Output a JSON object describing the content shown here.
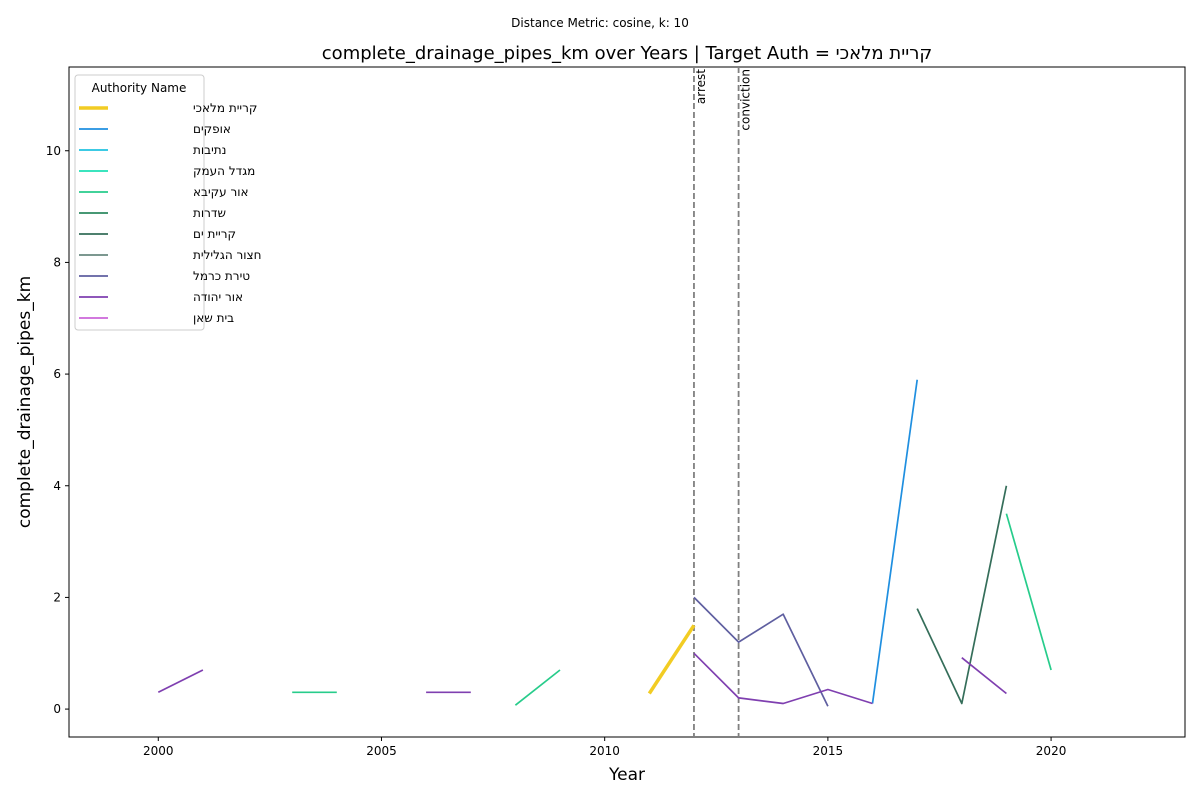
{
  "chart_data": {
    "type": "line",
    "suptitle": "Distance Metric: cosine, k: 10",
    "title": "complete_drainage_pipes_km over Years | Target Auth = קריית מלאכי",
    "xlabel": "Year",
    "ylabel": "complete_drainage_pipes_km",
    "xlim": [
      1998,
      2023
    ],
    "ylim": [
      -0.5,
      11.5
    ],
    "xticks": [
      2000,
      2005,
      2010,
      2015,
      2020
    ],
    "yticks": [
      0,
      2,
      4,
      6,
      8,
      10
    ],
    "grid": false,
    "legend": {
      "title": "Authority Name",
      "placement": "upper-left"
    },
    "vlines": [
      {
        "x": 2012,
        "label": "arrest"
      },
      {
        "x": 2013,
        "label": "conviction"
      }
    ],
    "series": [
      {
        "name": "קריית מלאכי",
        "color": "#f2cc23",
        "target": true,
        "segments": [
          [
            [
              2011,
              0.28
            ],
            [
              2012,
              1.5
            ]
          ]
        ]
      },
      {
        "name": "אופקים",
        "color": "#1f8fe0",
        "target": false,
        "segments": [
          [
            [
              2016,
              0.1
            ],
            [
              2017,
              5.9
            ]
          ]
        ]
      },
      {
        "name": "נתיבות",
        "color": "#21c2e0",
        "target": false,
        "segments": []
      },
      {
        "name": "מגדל העמק",
        "color": "#1fe0b4",
        "target": false,
        "segments": []
      },
      {
        "name": "אור עקיבא",
        "color": "#27cc8b",
        "target": false,
        "segments": [
          [
            [
              2003,
              0.3
            ],
            [
              2004,
              0.3
            ]
          ],
          [
            [
              2008,
              0.07
            ],
            [
              2009,
              0.7
            ]
          ],
          [
            [
              2019,
              3.5
            ],
            [
              2020,
              0.7
            ]
          ]
        ]
      },
      {
        "name": "שדרות",
        "color": "#2d8a60",
        "target": false,
        "segments": []
      },
      {
        "name": "קריית ים",
        "color": "#356e5a",
        "target": false,
        "segments": [
          [
            [
              2017,
              1.8
            ],
            [
              2018,
              0.1
            ],
            [
              2019,
              4.0
            ]
          ]
        ]
      },
      {
        "name": "חצור הגלילית",
        "color": "#6a8a80",
        "target": false,
        "segments": []
      },
      {
        "name": "טירת כרמל",
        "color": "#5f5fa0",
        "target": false,
        "segments": [
          [
            [
              2012,
              2.0
            ],
            [
              2013,
              1.2
            ],
            [
              2014,
              1.7
            ],
            [
              2015,
              0.05
            ]
          ]
        ]
      },
      {
        "name": "אור יהודה",
        "color": "#7f3fb0",
        "target": false,
        "segments": [
          [
            [
              2000,
              0.3
            ],
            [
              2001,
              0.7
            ]
          ],
          [
            [
              2006,
              0.3
            ],
            [
              2007,
              0.3
            ]
          ],
          [
            [
              2012,
              1.0
            ],
            [
              2013,
              0.2
            ],
            [
              2014,
              0.1
            ],
            [
              2015,
              0.35
            ],
            [
              2016,
              0.1
            ]
          ],
          [
            [
              2018,
              0.92
            ],
            [
              2019,
              0.28
            ]
          ]
        ]
      },
      {
        "name": "בית שאן",
        "color": "#cc66d9",
        "target": false,
        "segments": []
      }
    ]
  }
}
